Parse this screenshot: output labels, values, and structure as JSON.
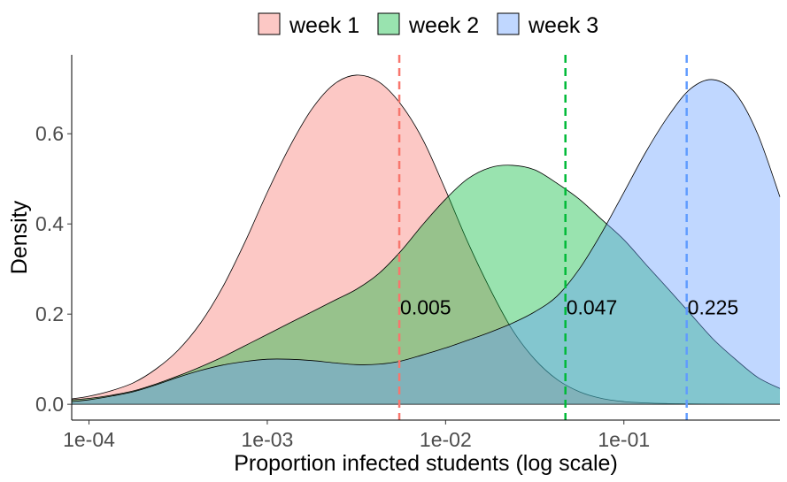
{
  "chart_data": {
    "type": "area",
    "title": "",
    "xlabel": "Proportion infected students (log scale)",
    "ylabel": "Density",
    "x_scale": "log10",
    "xlim": [
      8e-05,
      0.75
    ],
    "ylim": [
      -0.035,
      0.775
    ],
    "x_ticks": [
      {
        "value": 0.0001,
        "label": "1e-04"
      },
      {
        "value": 0.001,
        "label": "1e-03"
      },
      {
        "value": 0.01,
        "label": "1e-02"
      },
      {
        "value": 0.1,
        "label": "1e-01"
      }
    ],
    "y_ticks": [
      {
        "value": 0.0,
        "label": "0.0"
      },
      {
        "value": 0.2,
        "label": "0.2"
      },
      {
        "value": 0.4,
        "label": "0.4"
      },
      {
        "value": 0.6,
        "label": "0.6"
      }
    ],
    "grid": false,
    "legend_position": "top",
    "series": [
      {
        "name": "week 1",
        "color": "#F8766D",
        "fill": "#F8766D",
        "x": [
          8e-05,
          0.0001,
          0.000133,
          0.000178,
          0.000237,
          0.000316,
          0.000422,
          0.000562,
          0.00075,
          0.001,
          0.00133,
          0.00178,
          0.00237,
          0.00316,
          0.00422,
          0.00562,
          0.0075,
          0.01,
          0.0133,
          0.0178,
          0.0237,
          0.0316,
          0.0422,
          0.0562,
          0.075,
          0.1,
          0.133,
          0.178,
          0.237,
          0.316,
          0.422,
          0.562,
          0.75
        ],
        "y": [
          0.012,
          0.018,
          0.03,
          0.048,
          0.078,
          0.12,
          0.18,
          0.26,
          0.36,
          0.47,
          0.57,
          0.655,
          0.71,
          0.73,
          0.715,
          0.665,
          0.585,
          0.475,
          0.36,
          0.255,
          0.165,
          0.1,
          0.055,
          0.028,
          0.013,
          0.006,
          0.003,
          0.0015,
          0.0007,
          0.0003,
          0.0001,
          5e-05,
          0.0
        ]
      },
      {
        "name": "week 2",
        "color": "#00BA38",
        "fill": "#00BA38",
        "x": [
          8e-05,
          0.0001,
          0.000133,
          0.000178,
          0.000237,
          0.000316,
          0.000422,
          0.000562,
          0.00075,
          0.001,
          0.00133,
          0.00178,
          0.00237,
          0.00316,
          0.00422,
          0.00562,
          0.0075,
          0.01,
          0.0133,
          0.0178,
          0.0237,
          0.0316,
          0.0422,
          0.0562,
          0.075,
          0.1,
          0.133,
          0.178,
          0.237,
          0.316,
          0.422,
          0.562,
          0.75
        ],
        "y": [
          0.01,
          0.013,
          0.02,
          0.03,
          0.045,
          0.063,
          0.083,
          0.105,
          0.13,
          0.155,
          0.18,
          0.205,
          0.23,
          0.255,
          0.29,
          0.34,
          0.4,
          0.455,
          0.5,
          0.525,
          0.53,
          0.52,
          0.49,
          0.455,
          0.41,
          0.365,
          0.31,
          0.255,
          0.2,
          0.145,
          0.1,
          0.06,
          0.035
        ]
      },
      {
        "name": "week 3",
        "color": "#619CFF",
        "fill": "#619CFF",
        "x": [
          8e-05,
          0.0001,
          0.000133,
          0.000178,
          0.000237,
          0.000316,
          0.000422,
          0.000562,
          0.00075,
          0.001,
          0.00133,
          0.00178,
          0.00237,
          0.00316,
          0.00422,
          0.00562,
          0.0075,
          0.01,
          0.0133,
          0.0178,
          0.0237,
          0.0316,
          0.0422,
          0.0562,
          0.075,
          0.1,
          0.133,
          0.178,
          0.237,
          0.316,
          0.422,
          0.562,
          0.75
        ],
        "y": [
          0.006,
          0.01,
          0.018,
          0.028,
          0.043,
          0.06,
          0.075,
          0.087,
          0.095,
          0.1,
          0.1,
          0.097,
          0.092,
          0.088,
          0.089,
          0.096,
          0.11,
          0.125,
          0.142,
          0.16,
          0.18,
          0.205,
          0.24,
          0.3,
          0.38,
          0.47,
          0.56,
          0.64,
          0.7,
          0.72,
          0.69,
          0.6,
          0.46
        ]
      }
    ],
    "reference_lines": [
      {
        "series": "week 1",
        "x": 0.0055,
        "label": "0.005",
        "label_y": 0.215,
        "color": "#F8766D"
      },
      {
        "series": "week 2",
        "x": 0.047,
        "label": "0.047",
        "label_y": 0.215,
        "color": "#00BA38"
      },
      {
        "series": "week 3",
        "x": 0.225,
        "label": "0.225",
        "label_y": 0.215,
        "color": "#619CFF"
      }
    ]
  }
}
